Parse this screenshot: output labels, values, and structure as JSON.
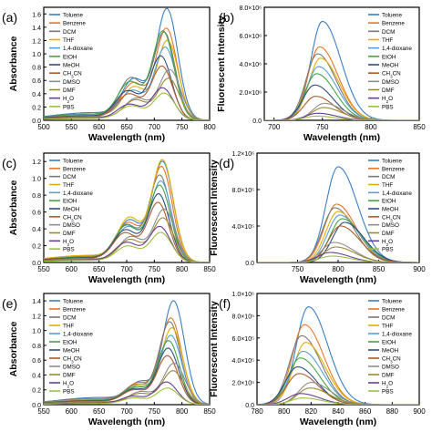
{
  "legend_names": [
    "Toluene",
    "Benzene",
    "DCM",
    "THF",
    "1,4-dioxane",
    "EtOH",
    "MeOH",
    "CH3CN",
    "DMSO",
    "DMF",
    "H2O",
    "PBS"
  ],
  "legend_colors": [
    "#3b7fc4",
    "#e8752a",
    "#7a7a7a",
    "#e0b000",
    "#5aa0d8",
    "#47a447",
    "#2f4f7f",
    "#b05a2a",
    "#8e8e8e",
    "#9c8a30",
    "#6a3e98",
    "#9bc23c"
  ],
  "chart_data": [
    {
      "type": "line",
      "panel_label": "(a)",
      "xlabel": "Wavelength (nm)",
      "ylabel": "Absorbance",
      "xlim": [
        500,
        800
      ],
      "ylim": [
        0,
        1.7
      ],
      "xticks": [
        500,
        550,
        600,
        650,
        700,
        750,
        800
      ],
      "xtick_labels": [
        "500",
        "550",
        "600",
        "650",
        "700",
        "750",
        "800"
      ],
      "yticks": [
        0,
        0.2,
        0.4,
        0.6,
        0.8,
        1.0,
        1.2,
        1.4,
        1.6
      ],
      "ytick_labels": [
        "0.0",
        "0.2",
        "0.4",
        "0.6",
        "0.8",
        "1.0",
        "1.2",
        "1.4",
        "1.6"
      ],
      "legend": "top-left",
      "series": [
        {
          "name": "Toluene",
          "peak_x": 723,
          "peak_y": 1.65,
          "shoulder_y": 0.55
        },
        {
          "name": "Benzene",
          "peak_x": 722,
          "peak_y": 1.36,
          "shoulder_y": 0.5
        },
        {
          "name": "DCM",
          "peak_x": 718,
          "peak_y": 1.3,
          "shoulder_y": 0.58
        },
        {
          "name": "THF",
          "peak_x": 724,
          "peak_y": 1.18,
          "shoulder_y": 0.45
        },
        {
          "name": "1,4-dioxane",
          "peak_x": 720,
          "peak_y": 1.08,
          "shoulder_y": 0.4
        },
        {
          "name": "EtOH",
          "peak_x": 716,
          "peak_y": 1.32,
          "shoulder_y": 0.52
        },
        {
          "name": "MeOH",
          "peak_x": 712,
          "peak_y": 0.95,
          "shoulder_y": 0.4
        },
        {
          "name": "CH3CN",
          "peak_x": 714,
          "peak_y": 0.8,
          "shoulder_y": 0.36
        },
        {
          "name": "DMSO",
          "peak_x": 728,
          "peak_y": 0.75,
          "shoulder_y": 0.3
        },
        {
          "name": "DMF",
          "peak_x": 726,
          "peak_y": 0.62,
          "shoulder_y": 0.28
        },
        {
          "name": "H2O",
          "peak_x": 715,
          "peak_y": 0.48,
          "shoulder_y": 0.22
        },
        {
          "name": "PBS",
          "peak_x": 718,
          "peak_y": 0.4,
          "shoulder_y": 0.2
        }
      ]
    },
    {
      "type": "line",
      "panel_label": "(b)",
      "xlabel": "Wavelength (nm)",
      "ylabel": "Fluorescent Intensity",
      "xlim": [
        690,
        850
      ],
      "ylim": [
        0,
        8000000
      ],
      "xticks": [
        700,
        750,
        800,
        850
      ],
      "xtick_labels": [
        "700",
        "750",
        "800",
        "850"
      ],
      "yticks": [
        0,
        2000000,
        4000000,
        6000000,
        8000000
      ],
      "ytick_labels": [
        "0.0",
        "2.0×10⁶",
        "4.0×10⁶",
        "6.0×10⁶",
        "8.0×10⁶"
      ],
      "legend": "top-right",
      "series": [
        {
          "name": "Toluene",
          "peak_x": 750,
          "peak_y": 7000000
        },
        {
          "name": "Benzene",
          "peak_x": 747,
          "peak_y": 5200000
        },
        {
          "name": "DCM",
          "peak_x": 745,
          "peak_y": 4700000
        },
        {
          "name": "THF",
          "peak_x": 748,
          "peak_y": 4400000
        },
        {
          "name": "1,4-dioxane",
          "peak_x": 746,
          "peak_y": 3800000
        },
        {
          "name": "EtOH",
          "peak_x": 744,
          "peak_y": 3300000
        },
        {
          "name": "MeOH",
          "peak_x": 742,
          "peak_y": 2500000
        },
        {
          "name": "CH3CN",
          "peak_x": 743,
          "peak_y": 1700000
        },
        {
          "name": "DMSO",
          "peak_x": 752,
          "peak_y": 1200000
        },
        {
          "name": "DMF",
          "peak_x": 751,
          "peak_y": 900000
        },
        {
          "name": "H2O",
          "peak_x": 745,
          "peak_y": 500000
        },
        {
          "name": "PBS",
          "peak_x": 744,
          "peak_y": 300000
        }
      ]
    },
    {
      "type": "line",
      "panel_label": "(c)",
      "xlabel": "Wavelength (nm)",
      "ylabel": "Absorbance",
      "xlim": [
        550,
        850
      ],
      "ylim": [
        0,
        1.3
      ],
      "xticks": [
        550,
        600,
        650,
        700,
        750,
        800,
        850
      ],
      "xtick_labels": [
        "550",
        "600",
        "650",
        "700",
        "750",
        "800",
        "850"
      ],
      "yticks": [
        0,
        0.2,
        0.4,
        0.6,
        0.8,
        1.0,
        1.2
      ],
      "ytick_labels": [
        "0.0",
        "0.2",
        "0.4",
        "0.6",
        "0.8",
        "1.0",
        "1.2"
      ],
      "legend": "top-left",
      "series": [
        {
          "name": "Toluene",
          "peak_x": 765,
          "peak_y": 1.18,
          "shoulder_y": 0.45
        },
        {
          "name": "Benzene",
          "peak_x": 763,
          "peak_y": 1.12,
          "shoulder_y": 0.42
        },
        {
          "name": "DCM",
          "peak_x": 760,
          "peak_y": 1.02,
          "shoulder_y": 0.4
        },
        {
          "name": "THF",
          "peak_x": 765,
          "peak_y": 1.2,
          "shoulder_y": 0.48
        },
        {
          "name": "1,4-dioxane",
          "peak_x": 762,
          "peak_y": 0.95,
          "shoulder_y": 0.38
        },
        {
          "name": "EtOH",
          "peak_x": 760,
          "peak_y": 0.9,
          "shoulder_y": 0.4
        },
        {
          "name": "MeOH",
          "peak_x": 758,
          "peak_y": 0.8,
          "shoulder_y": 0.35
        },
        {
          "name": "CH3CN",
          "peak_x": 757,
          "peak_y": 0.7,
          "shoulder_y": 0.32
        },
        {
          "name": "DMSO",
          "peak_x": 768,
          "peak_y": 0.62,
          "shoulder_y": 0.28
        },
        {
          "name": "DMF",
          "peak_x": 766,
          "peak_y": 0.52,
          "shoulder_y": 0.25
        },
        {
          "name": "H2O",
          "peak_x": 760,
          "peak_y": 0.42,
          "shoulder_y": 0.22
        },
        {
          "name": "PBS",
          "peak_x": 762,
          "peak_y": 0.35,
          "shoulder_y": 0.18
        }
      ]
    },
    {
      "type": "line",
      "panel_label": "(d)",
      "xlabel": "Wavelength (nm)",
      "ylabel": "Fluorescent Intensity",
      "xlim": [
        700,
        900
      ],
      "ylim": [
        0,
        1200000
      ],
      "xticks": [
        750,
        800,
        850,
        900
      ],
      "xtick_labels": [
        "750",
        "800",
        "850",
        "900"
      ],
      "yticks": [
        0,
        400000,
        800000,
        1200000
      ],
      "ytick_labels": [
        "0.0",
        "4.0×10⁵",
        "8.0×10⁵",
        "1.2×10⁶"
      ],
      "legend": "top-right",
      "series": [
        {
          "name": "Toluene",
          "peak_x": 800,
          "peak_y": 1050000
        },
        {
          "name": "Benzene",
          "peak_x": 798,
          "peak_y": 640000
        },
        {
          "name": "DCM",
          "peak_x": 796,
          "peak_y": 600000
        },
        {
          "name": "THF",
          "peak_x": 800,
          "peak_y": 560000
        },
        {
          "name": "1,4-dioxane",
          "peak_x": 802,
          "peak_y": 520000
        },
        {
          "name": "EtOH",
          "peak_x": 805,
          "peak_y": 480000
        },
        {
          "name": "MeOH",
          "peak_x": 808,
          "peak_y": 440000
        },
        {
          "name": "CH3CN",
          "peak_x": 803,
          "peak_y": 400000
        },
        {
          "name": "DMSO",
          "peak_x": 795,
          "peak_y": 220000
        },
        {
          "name": "DMF",
          "peak_x": 797,
          "peak_y": 170000
        },
        {
          "name": "H2O",
          "peak_x": 790,
          "peak_y": 110000
        },
        {
          "name": "PBS",
          "peak_x": 792,
          "peak_y": 70000
        }
      ]
    },
    {
      "type": "line",
      "panel_label": "(e)",
      "xlabel": "Wavelength (nm)",
      "ylabel": "Absorbance",
      "xlim": [
        550,
        850
      ],
      "ylim": [
        0,
        1.5
      ],
      "xticks": [
        550,
        600,
        650,
        700,
        750,
        800,
        850
      ],
      "xtick_labels": [
        "550",
        "600",
        "650",
        "700",
        "750",
        "800",
        "850"
      ],
      "yticks": [
        0,
        0.2,
        0.4,
        0.6,
        0.8,
        1.0,
        1.2,
        1.4
      ],
      "ytick_labels": [
        "0.0",
        "0.2",
        "0.4",
        "0.6",
        "0.8",
        "1.0",
        "1.2",
        "1.4"
      ],
      "legend": "top-left",
      "series": [
        {
          "name": "Toluene",
          "peak_x": 785,
          "peak_y": 1.38,
          "shoulder_y": 0.25
        },
        {
          "name": "Benzene",
          "peak_x": 780,
          "peak_y": 1.15,
          "shoulder_y": 0.24
        },
        {
          "name": "DCM",
          "peak_x": 778,
          "peak_y": 1.1,
          "shoulder_y": 0.22
        },
        {
          "name": "THF",
          "peak_x": 782,
          "peak_y": 1.02,
          "shoulder_y": 0.22
        },
        {
          "name": "1,4-dioxane",
          "peak_x": 780,
          "peak_y": 0.92,
          "shoulder_y": 0.2
        },
        {
          "name": "EtOH",
          "peak_x": 776,
          "peak_y": 0.85,
          "shoulder_y": 0.2
        },
        {
          "name": "MeOH",
          "peak_x": 775,
          "peak_y": 0.75,
          "shoulder_y": 0.18
        },
        {
          "name": "CH3CN",
          "peak_x": 774,
          "peak_y": 0.65,
          "shoulder_y": 0.17
        },
        {
          "name": "DMSO",
          "peak_x": 786,
          "peak_y": 0.55,
          "shoulder_y": 0.15
        },
        {
          "name": "DMF",
          "peak_x": 784,
          "peak_y": 0.45,
          "shoulder_y": 0.13
        },
        {
          "name": "H2O",
          "peak_x": 772,
          "peak_y": 0.3,
          "shoulder_y": 0.1
        },
        {
          "name": "PBS",
          "peak_x": 774,
          "peak_y": 0.22,
          "shoulder_y": 0.08
        }
      ]
    },
    {
      "type": "line",
      "panel_label": "(f)",
      "xlabel": "Wavelength (nm)",
      "ylabel": "Fluorescent Intensity",
      "xlim": [
        780,
        900
      ],
      "ylim": [
        0,
        1000000
      ],
      "xticks": [
        780,
        800,
        820,
        840,
        860,
        880,
        900
      ],
      "xtick_labels": [
        "780",
        "800",
        "820",
        "840",
        "860",
        "880",
        "900"
      ],
      "yticks": [
        0,
        200000,
        400000,
        600000,
        800000,
        1000000
      ],
      "ytick_labels": [
        "0.0",
        "2.0×10⁵",
        "4.0×10⁵",
        "6.0×10⁵",
        "8.0×10⁵",
        "1.0×10⁶"
      ],
      "legend": "top-right",
      "series": [
        {
          "name": "Toluene",
          "peak_x": 818,
          "peak_y": 880000
        },
        {
          "name": "Benzene",
          "peak_x": 815,
          "peak_y": 720000
        },
        {
          "name": "DCM",
          "peak_x": 813,
          "peak_y": 620000
        },
        {
          "name": "THF",
          "peak_x": 816,
          "peak_y": 560000
        },
        {
          "name": "1,4-dioxane",
          "peak_x": 814,
          "peak_y": 480000
        },
        {
          "name": "EtOH",
          "peak_x": 812,
          "peak_y": 420000
        },
        {
          "name": "MeOH",
          "peak_x": 810,
          "peak_y": 340000
        },
        {
          "name": "CH3CN",
          "peak_x": 811,
          "peak_y": 280000
        },
        {
          "name": "DMSO",
          "peak_x": 820,
          "peak_y": 200000
        },
        {
          "name": "DMF",
          "peak_x": 819,
          "peak_y": 150000
        },
        {
          "name": "H2O",
          "peak_x": 812,
          "peak_y": 100000
        },
        {
          "name": "PBS",
          "peak_x": 814,
          "peak_y": 60000
        }
      ]
    }
  ]
}
